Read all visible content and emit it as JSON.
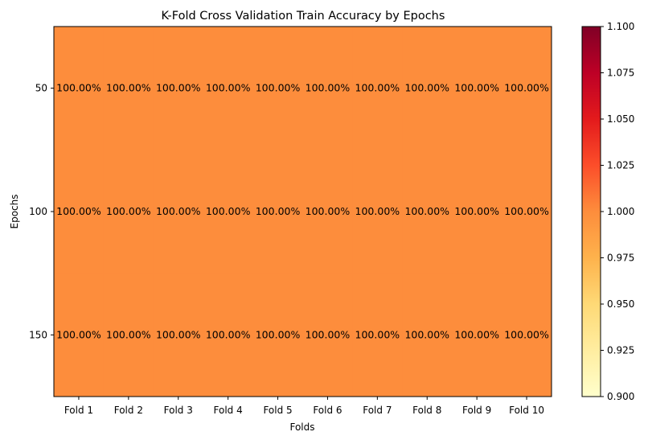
{
  "chart_data": {
    "type": "heatmap",
    "title": "K-Fold Cross Validation Train Accuracy by Epochs",
    "xlabel": "Folds",
    "ylabel": "Epochs",
    "x_categories": [
      "Fold 1",
      "Fold 2",
      "Fold 3",
      "Fold 4",
      "Fold 5",
      "Fold 6",
      "Fold 7",
      "Fold 8",
      "Fold 9",
      "Fold 10"
    ],
    "y_categories": [
      "50",
      "100",
      "150"
    ],
    "values": [
      [
        1.0,
        1.0,
        1.0,
        1.0,
        1.0,
        1.0,
        1.0,
        1.0,
        1.0,
        1.0
      ],
      [
        1.0,
        1.0,
        1.0,
        1.0,
        1.0,
        1.0,
        1.0,
        1.0,
        1.0,
        1.0
      ],
      [
        1.0,
        1.0,
        1.0,
        1.0,
        1.0,
        1.0,
        1.0,
        1.0,
        1.0,
        1.0
      ]
    ],
    "cell_labels": [
      [
        "100.00%",
        "100.00%",
        "100.00%",
        "100.00%",
        "100.00%",
        "100.00%",
        "100.00%",
        "100.00%",
        "100.00%",
        "100.00%"
      ],
      [
        "100.00%",
        "100.00%",
        "100.00%",
        "100.00%",
        "100.00%",
        "100.00%",
        "100.00%",
        "100.00%",
        "100.00%",
        "100.00%"
      ],
      [
        "100.00%",
        "100.00%",
        "100.00%",
        "100.00%",
        "100.00%",
        "100.00%",
        "100.00%",
        "100.00%",
        "100.00%",
        "100.00%"
      ]
    ],
    "colormap": "YlOrRd",
    "colorbar": {
      "range": [
        0.9,
        1.1
      ],
      "ticks": [
        "0.900",
        "0.925",
        "0.950",
        "0.975",
        "1.000",
        "1.025",
        "1.050",
        "1.075",
        "1.100"
      ],
      "placement": "right"
    },
    "grid": false
  }
}
